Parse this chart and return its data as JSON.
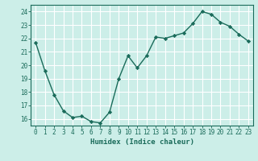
{
  "x": [
    0,
    1,
    2,
    3,
    4,
    5,
    6,
    7,
    8,
    9,
    10,
    11,
    12,
    13,
    14,
    15,
    16,
    17,
    18,
    19,
    20,
    21,
    22,
    23
  ],
  "y": [
    21.7,
    19.6,
    17.8,
    16.6,
    16.1,
    16.2,
    15.8,
    15.7,
    16.5,
    19.0,
    20.7,
    19.8,
    20.7,
    22.1,
    22.0,
    22.2,
    22.4,
    23.1,
    24.0,
    23.8,
    23.2,
    22.9,
    22.3,
    21.8
  ],
  "line_color": "#1a6b5a",
  "marker": "D",
  "marker_size": 2.2,
  "bg_color": "#cceee8",
  "grid_color": "#ffffff",
  "xlabel": "Humidex (Indice chaleur)",
  "xlabel_color": "#1a6b5a",
  "tick_color": "#1a6b5a",
  "label_color": "#1a6b5a",
  "ylim": [
    15.5,
    24.5
  ],
  "yticks": [
    16,
    17,
    18,
    19,
    20,
    21,
    22,
    23,
    24
  ],
  "xlim": [
    -0.5,
    23.5
  ],
  "xticks": [
    0,
    1,
    2,
    3,
    4,
    5,
    6,
    7,
    8,
    9,
    10,
    11,
    12,
    13,
    14,
    15,
    16,
    17,
    18,
    19,
    20,
    21,
    22,
    23
  ],
  "tick_fontsize": 5.5,
  "xlabel_fontsize": 6.5,
  "linewidth": 1.0
}
